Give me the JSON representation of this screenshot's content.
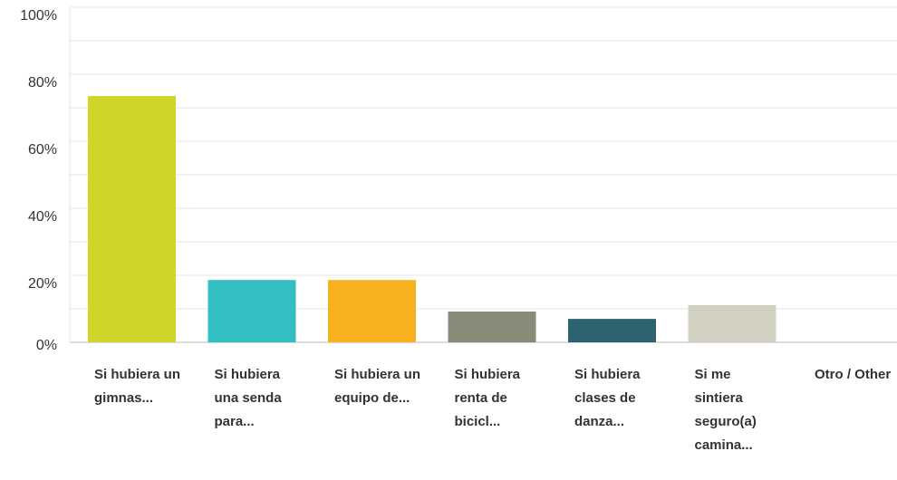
{
  "chart_data": {
    "type": "bar",
    "categories": [
      "Si hubiera un gimnas...",
      "Si hubiera una senda para...",
      "Si hubiera un equipo de...",
      "Si hubiera renta de bicicl...",
      "Si hubiera clases de danza...",
      "Si me sintiera seguro(a) camina...",
      "Otro / Other"
    ],
    "values": [
      73.5,
      18.6,
      18.6,
      9.2,
      7.0,
      11.1,
      0
    ],
    "colors": [
      "#d0d52a",
      "#33bfc1",
      "#f7b11e",
      "#8a8a78",
      "#2d6371",
      "#d1d0c1",
      "#999999"
    ],
    "ylim": [
      0,
      100
    ],
    "yticks": [
      {
        "value": 0,
        "label": "0%"
      },
      {
        "value": 20,
        "label": "20%"
      },
      {
        "value": 40,
        "label": "40%"
      },
      {
        "value": 60,
        "label": "60%"
      },
      {
        "value": 80,
        "label": "80%"
      },
      {
        "value": 100,
        "label": "100%"
      }
    ],
    "minor_yticks": [
      10,
      30,
      50,
      70,
      90
    ],
    "grid": true
  }
}
